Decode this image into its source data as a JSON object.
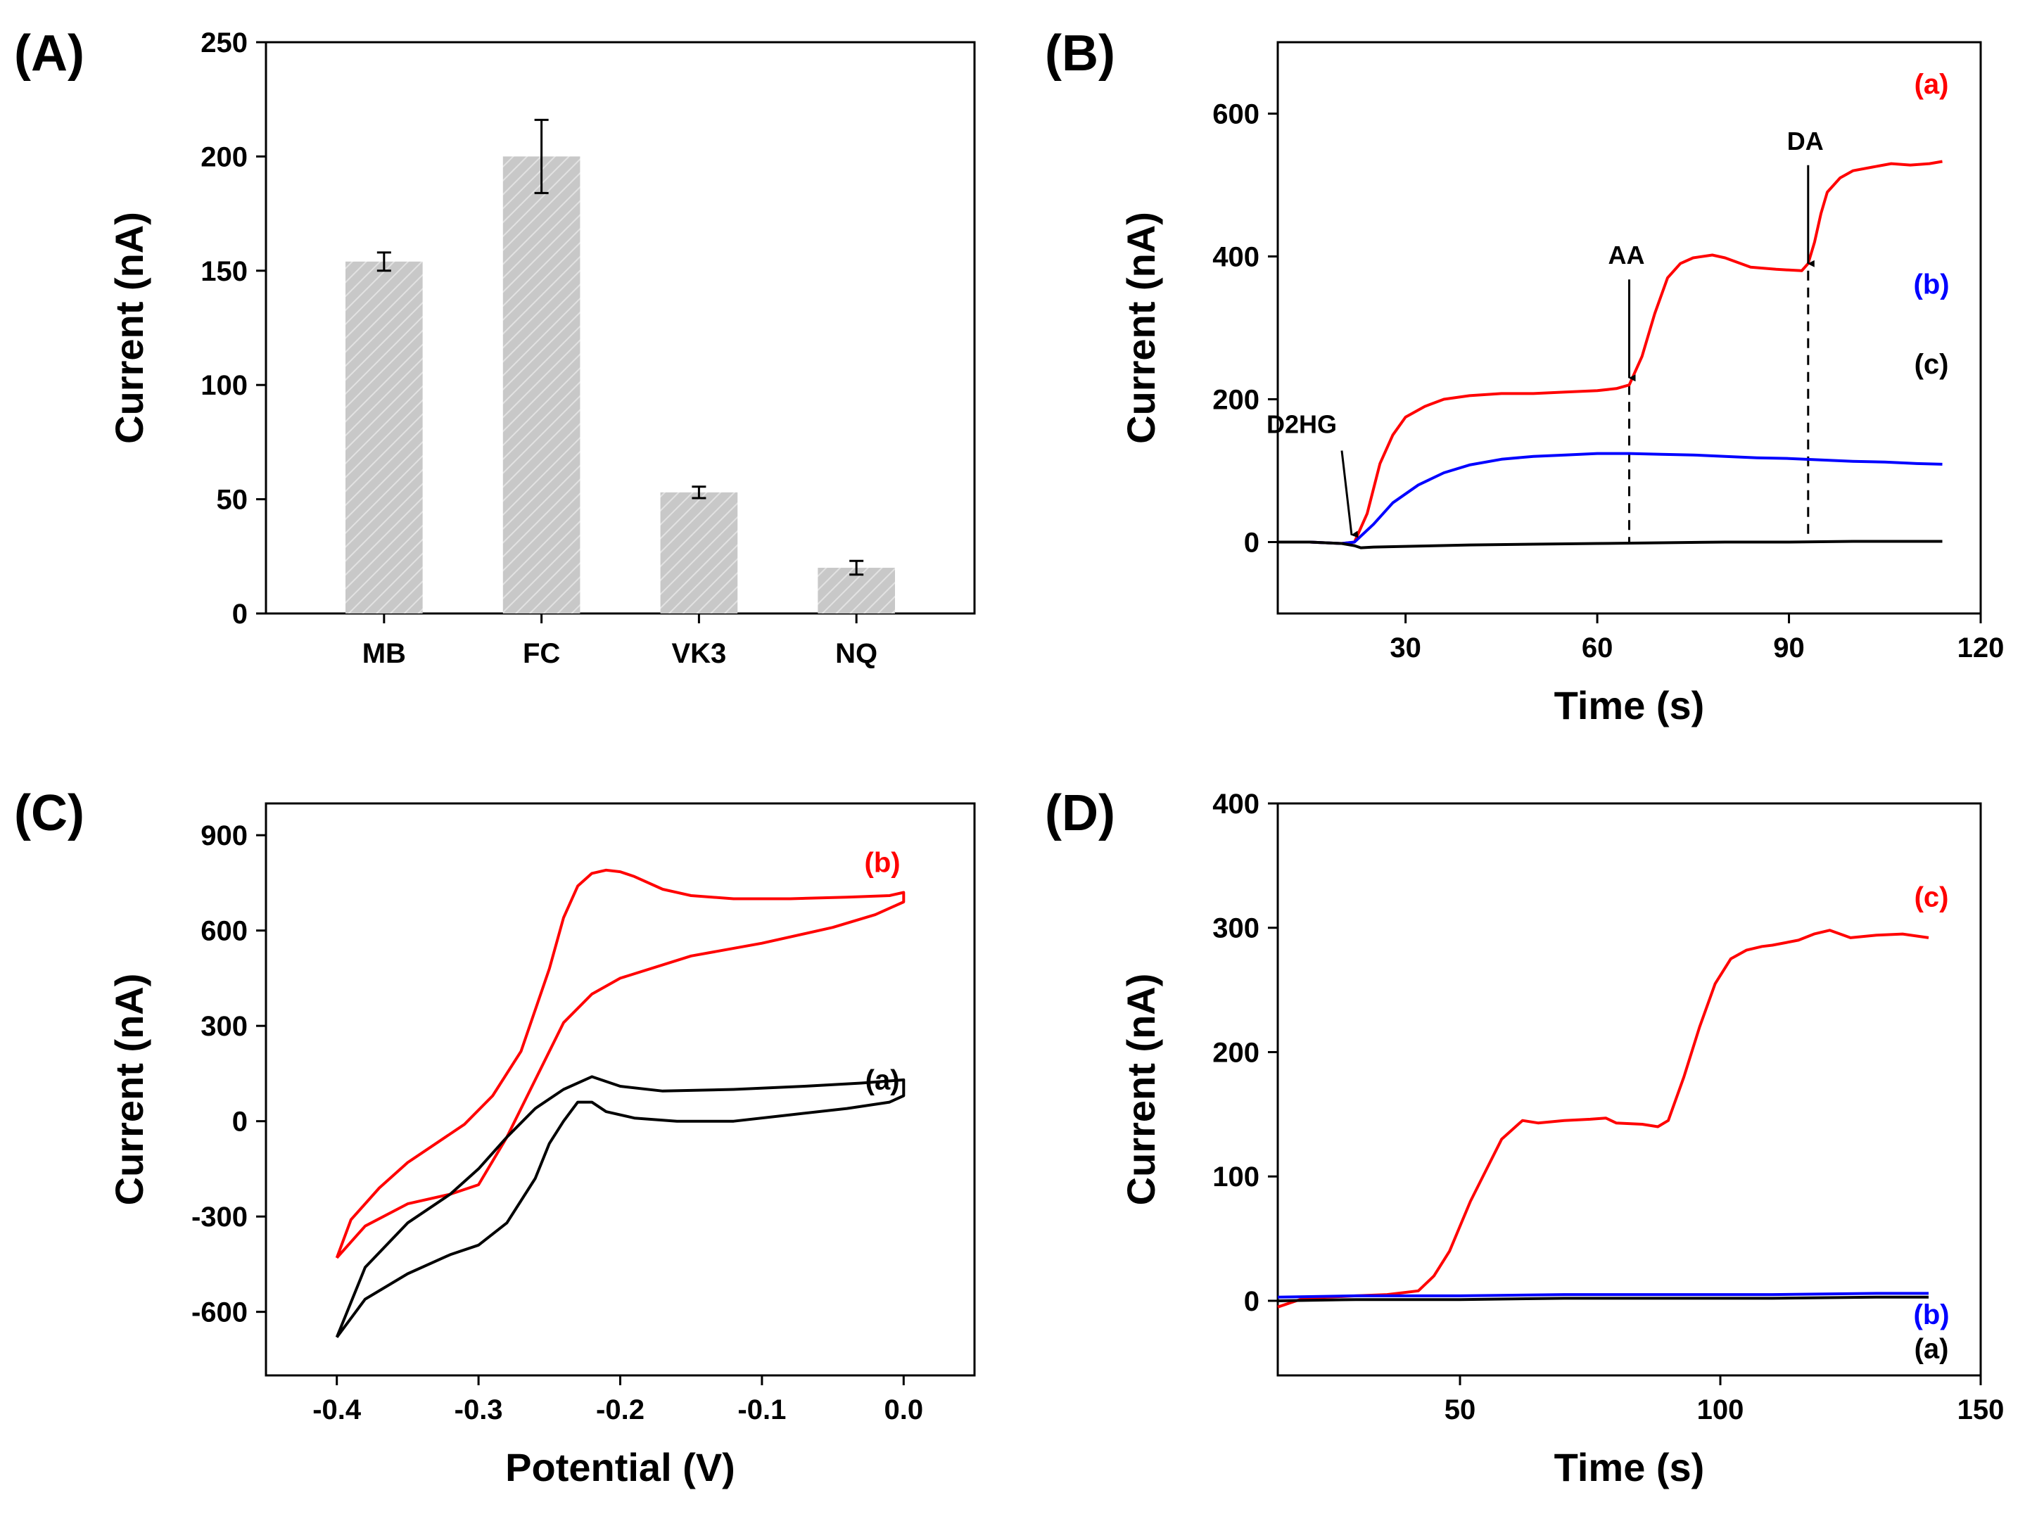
{
  "chart_data": [
    {
      "panel": "(A)",
      "type": "bar",
      "xlabel": "",
      "ylabel": "Current (nA)",
      "ylim": [
        0,
        250
      ],
      "yticks": [
        0,
        50,
        100,
        150,
        200,
        250
      ],
      "categories": [
        "MB",
        "FC",
        "VK3",
        "NQ"
      ],
      "values": [
        154,
        200,
        53,
        20
      ],
      "errors": [
        4,
        16,
        2.5,
        3
      ],
      "bar_color": "#c8c8c8",
      "annotations": []
    },
    {
      "panel": "(B)",
      "type": "line",
      "xlabel": "Time (s)",
      "ylabel": "Current (nA)",
      "xlim": [
        10,
        120
      ],
      "ylim": [
        -100,
        700
      ],
      "xticks": [
        30,
        60,
        90,
        120
      ],
      "yticks": [
        0,
        200,
        400,
        600
      ],
      "series": [
        {
          "name": "(a)",
          "color": "#ff0000",
          "x": [
            10,
            15,
            20,
            22,
            24,
            26,
            28,
            30,
            33,
            36,
            40,
            45,
            50,
            55,
            60,
            63,
            65,
            67,
            69,
            71,
            73,
            75,
            78,
            80,
            84,
            88,
            92,
            93,
            94,
            95,
            96,
            98,
            100,
            103,
            106,
            109,
            112,
            114
          ],
          "y": [
            0,
            0,
            -2,
            0,
            40,
            110,
            150,
            175,
            190,
            200,
            205,
            208,
            208,
            210,
            212,
            215,
            220,
            260,
            320,
            370,
            390,
            398,
            402,
            398,
            385,
            382,
            380,
            390,
            420,
            460,
            490,
            510,
            520,
            525,
            530,
            528,
            530,
            533
          ]
        },
        {
          "name": "(b)",
          "color": "#0000ff",
          "x": [
            10,
            15,
            20,
            22,
            25,
            28,
            32,
            36,
            40,
            45,
            50,
            55,
            60,
            65,
            70,
            75,
            80,
            85,
            90,
            95,
            100,
            105,
            110,
            114
          ],
          "y": [
            0,
            0,
            -2,
            0,
            25,
            55,
            80,
            97,
            108,
            116,
            120,
            122,
            124,
            124,
            123,
            122,
            120,
            118,
            117,
            115,
            113,
            112,
            110,
            109
          ]
        },
        {
          "name": "(c)",
          "color": "#000000",
          "x": [
            10,
            15,
            20,
            22,
            23,
            25,
            30,
            40,
            50,
            60,
            70,
            80,
            90,
            100,
            110,
            114
          ],
          "y": [
            0,
            0,
            -2,
            -5,
            -8,
            -7,
            -6,
            -4,
            -3,
            -2,
            -1,
            0,
            0,
            1,
            1,
            1
          ]
        }
      ],
      "annotations": [
        {
          "text": "D2HG",
          "x": 22,
          "y": 0,
          "type": "arrow"
        },
        {
          "text": "AA",
          "x": 65,
          "y": 220,
          "type": "arrow"
        },
        {
          "text": "DA",
          "x": 93,
          "y": 380,
          "type": "arrow"
        }
      ],
      "dashed_lines": [
        65,
        93
      ]
    },
    {
      "panel": "(C)",
      "type": "line",
      "xlabel": "Potential (V)",
      "ylabel": "Current (nA)",
      "xlim": [
        -0.45,
        0.05
      ],
      "ylim": [
        -800,
        1000
      ],
      "xticks": [
        -0.4,
        -0.3,
        -0.2,
        -0.1,
        0.0
      ],
      "xtick_labels": [
        "-0.4",
        "-0.3",
        "-0.2",
        "-0.1",
        "0.0"
      ],
      "yticks": [
        -600,
        -300,
        0,
        300,
        600,
        900
      ],
      "series": [
        {
          "name": "(b)",
          "color": "#ff0000",
          "x": [
            -0.4,
            -0.39,
            -0.37,
            -0.35,
            -0.33,
            -0.31,
            -0.29,
            -0.27,
            -0.25,
            -0.24,
            -0.23,
            -0.22,
            -0.21,
            -0.2,
            -0.19,
            -0.17,
            -0.15,
            -0.12,
            -0.08,
            -0.04,
            -0.01,
            0.0,
            0.0,
            -0.02,
            -0.05,
            -0.1,
            -0.15,
            -0.2,
            -0.22,
            -0.24,
            -0.26,
            -0.28,
            -0.3,
            -0.32,
            -0.35,
            -0.38,
            -0.4
          ],
          "y": [
            -430,
            -310,
            -210,
            -130,
            -70,
            -10,
            80,
            220,
            480,
            640,
            740,
            780,
            790,
            785,
            770,
            730,
            710,
            700,
            700,
            705,
            710,
            720,
            690,
            650,
            610,
            560,
            520,
            450,
            400,
            310,
            130,
            -50,
            -200,
            -230,
            -260,
            -330,
            -430
          ]
        },
        {
          "name": "(a)",
          "color": "#000000",
          "x": [
            -0.4,
            -0.38,
            -0.35,
            -0.32,
            -0.3,
            -0.28,
            -0.26,
            -0.25,
            -0.24,
            -0.23,
            -0.22,
            -0.21,
            -0.19,
            -0.16,
            -0.12,
            -0.08,
            -0.04,
            -0.01,
            0.0,
            0.0,
            -0.03,
            -0.07,
            -0.12,
            -0.17,
            -0.2,
            -0.22,
            -0.24,
            -0.26,
            -0.28,
            -0.3,
            -0.32,
            -0.35,
            -0.38,
            -0.4
          ],
          "y": [
            -680,
            -560,
            -480,
            -420,
            -390,
            -320,
            -180,
            -70,
            0,
            60,
            60,
            30,
            10,
            0,
            0,
            20,
            40,
            60,
            80,
            130,
            120,
            110,
            100,
            95,
            110,
            140,
            100,
            40,
            -50,
            -150,
            -230,
            -320,
            -460,
            -680
          ]
        }
      ],
      "annotations": []
    },
    {
      "panel": "(D)",
      "type": "line",
      "xlabel": "Time (s)",
      "ylabel": "Current (nA)",
      "xlim": [
        15,
        150
      ],
      "ylim": [
        -60,
        400
      ],
      "xticks": [
        50,
        100,
        150
      ],
      "yticks": [
        0,
        100,
        200,
        300,
        400
      ],
      "series": [
        {
          "name": "(c)",
          "color": "#ff0000",
          "x": [
            15,
            20,
            30,
            36,
            38,
            42,
            45,
            48,
            50,
            52,
            55,
            58,
            62,
            65,
            70,
            75,
            78,
            80,
            85,
            88,
            90,
            93,
            96,
            99,
            102,
            105,
            108,
            110,
            115,
            118,
            121,
            125,
            130,
            135,
            140
          ],
          "y": [
            -5,
            2,
            4,
            5,
            6,
            8,
            20,
            40,
            60,
            80,
            105,
            130,
            145,
            143,
            145,
            146,
            147,
            143,
            142,
            140,
            145,
            180,
            220,
            255,
            275,
            282,
            285,
            286,
            290,
            295,
            298,
            292,
            294,
            295,
            292
          ]
        },
        {
          "name": "(b)",
          "color": "#0000ff",
          "x": [
            15,
            30,
            50,
            70,
            90,
            110,
            130,
            140
          ],
          "y": [
            3,
            4,
            4,
            5,
            5,
            5,
            6,
            6
          ]
        },
        {
          "name": "(a)",
          "color": "#000000",
          "x": [
            15,
            30,
            50,
            70,
            90,
            110,
            130,
            140
          ],
          "y": [
            0,
            1,
            1,
            2,
            2,
            2,
            3,
            3
          ]
        }
      ],
      "annotations": []
    }
  ]
}
